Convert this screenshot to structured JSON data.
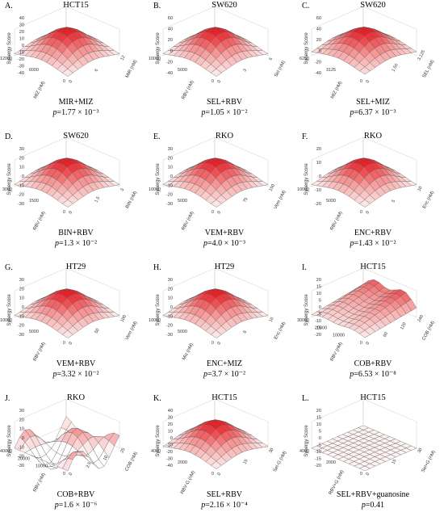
{
  "colors": {
    "high": "#e8141b",
    "mid": "#f59a9a",
    "low": "#ffffff",
    "grid": "#555555"
  },
  "chart_data": [
    {
      "id": "A",
      "type": "surface3d",
      "cell_line": "HCT15",
      "combo": "MIR+MIZ",
      "p_value": "1.77 × 10⁻³",
      "zlabel": "Synergy Score",
      "xlabel": "MIZ (nM)",
      "ylabel": "MIR (nM)",
      "z_ticks": [
        "40",
        "30",
        "20",
        "10",
        "0",
        "-10",
        "-20",
        "-30",
        "-40"
      ],
      "x_ticks": [
        "12000",
        "6000",
        "0"
      ],
      "y_ticks": [
        "0",
        "6",
        "12"
      ],
      "peak": 40,
      "corner_low": 0,
      "surface": "smooth"
    },
    {
      "id": "B",
      "type": "surface3d",
      "cell_line": "SW620",
      "combo": "SEL+RBV",
      "p_value": "1.05 × 10⁻²",
      "zlabel": "Synergy Score",
      "xlabel": "RBV (nM)",
      "ylabel": "Sel (nM)",
      "z_ticks": [
        "60",
        "40",
        "20",
        "0",
        "-20",
        "-40"
      ],
      "x_ticks": [
        "10000",
        "5000",
        "0"
      ],
      "y_ticks": [
        "0",
        "3",
        "6"
      ],
      "peak": 60,
      "corner_low": 0,
      "surface": "smooth"
    },
    {
      "id": "C",
      "type": "surface3d",
      "cell_line": "SW620",
      "combo": "SEL+MIZ",
      "p_value": "6.37 × 10⁻³",
      "zlabel": "Synergy Score",
      "xlabel": "MIZ (nM)",
      "ylabel": "SEL (nM)",
      "z_ticks": [
        "60",
        "40",
        "20",
        "0",
        "-20",
        "-40"
      ],
      "x_ticks": [
        "6250",
        "3125",
        "0"
      ],
      "y_ticks": [
        "0",
        "1.56",
        "3.125"
      ],
      "peak": 60,
      "corner_low": 5,
      "surface": "smooth"
    },
    {
      "id": "D",
      "type": "surface3d",
      "cell_line": "SW620",
      "combo": "BIN+RBV",
      "p_value": "1.3 × 10⁻²",
      "zlabel": "Synergy Score",
      "xlabel": "RBV (nM)",
      "ylabel": "BIN (nM)",
      "z_ticks": [
        "30",
        "20",
        "10",
        "0",
        "-10",
        "-20",
        "-30"
      ],
      "x_ticks": [
        "3000",
        "1500",
        "0"
      ],
      "y_ticks": [
        "0",
        "1.5",
        "3"
      ],
      "peak": 30,
      "corner_low": 0,
      "surface": "smooth"
    },
    {
      "id": "E",
      "type": "surface3d",
      "cell_line": "RKO",
      "combo": "VEM+RBV",
      "p_value": "4.0 × 10⁻³",
      "zlabel": "Synergy Score",
      "xlabel": "RBV (nM)",
      "ylabel": "Vem (nM)",
      "z_ticks": [
        "30",
        "20",
        "10",
        "0",
        "-10",
        "-20",
        "-30"
      ],
      "x_ticks": [
        "10000",
        "5000",
        "0"
      ],
      "y_ticks": [
        "0",
        "75",
        "150"
      ],
      "peak": 30,
      "corner_low": 0,
      "surface": "smooth"
    },
    {
      "id": "F",
      "type": "surface3d",
      "cell_line": "RKO",
      "combo": "ENC+RBV",
      "p_value": "1.43 × 10⁻²",
      "zlabel": "Synergy Score",
      "xlabel": "RBV (nM)",
      "ylabel": "Enc (nM)",
      "z_ticks": [
        "20",
        "10",
        "0",
        "-10",
        "-20"
      ],
      "x_ticks": [
        "10000",
        "5000",
        "0"
      ],
      "y_ticks": [
        "0",
        "5",
        "10"
      ],
      "peak": 20,
      "corner_low": 0,
      "surface": "smooth"
    },
    {
      "id": "G",
      "type": "surface3d",
      "cell_line": "HT29",
      "combo": "VEM+RBV",
      "p_value": "3.32 × 10⁻²",
      "zlabel": "Synergy Score",
      "xlabel": "RBV (nM)",
      "ylabel": "Vem (nM)",
      "z_ticks": [
        "30",
        "20",
        "10",
        "0",
        "-10",
        "-20",
        "-30"
      ],
      "x_ticks": [
        "10000",
        "5000",
        "0"
      ],
      "y_ticks": [
        "0",
        "50",
        "100"
      ],
      "peak": 30,
      "corner_low": 0,
      "surface": "smooth"
    },
    {
      "id": "H",
      "type": "surface3d",
      "cell_line": "HT29",
      "combo": "ENC+MIZ",
      "p_value": "3.7 × 10⁻²",
      "zlabel": "Synergy Score",
      "xlabel": "Miz (nM)",
      "ylabel": "Enc (nM)",
      "z_ticks": [
        "30",
        "20",
        "10",
        "0",
        "-10",
        "-20",
        "-30"
      ],
      "x_ticks": [
        "10000",
        "5000",
        "0"
      ],
      "y_ticks": [
        "0",
        "8",
        "16"
      ],
      "peak": 30,
      "corner_low": 0,
      "surface": "smooth"
    },
    {
      "id": "I",
      "type": "surface3d",
      "cell_line": "HCT15",
      "combo": "COB+RBV",
      "p_value": "6.53 × 10⁻⁸",
      "zlabel": "Synergy Score",
      "xlabel": "RBV (nM)",
      "ylabel": "COB (nM)",
      "z_ticks": [
        "20",
        "15",
        "10",
        "5",
        "0",
        "-5",
        "-10",
        "-15",
        "-20"
      ],
      "x_ticks": [
        "30000",
        "20000",
        "10000",
        "0"
      ],
      "y_ticks": [
        "0",
        "60",
        "120",
        "240"
      ],
      "peak": 20,
      "corner_low": 0,
      "surface": "ridged"
    },
    {
      "id": "J",
      "type": "surface3d",
      "cell_line": "RKO",
      "combo": "COB+RBV",
      "p_value": "1.6 × 10⁻⁶",
      "zlabel": "Synergy Score",
      "xlabel": "RBV (nM)",
      "ylabel": "COB (nM)",
      "z_ticks": [
        "30",
        "20",
        "10",
        "0",
        "-10",
        "-20",
        "-30"
      ],
      "x_ticks": [
        "40000",
        "20000",
        "10000",
        "0"
      ],
      "y_ticks": [
        "0",
        "2.5",
        "10",
        "25"
      ],
      "peak": 30,
      "corner_low": 0,
      "surface": "wavy"
    },
    {
      "id": "K",
      "type": "surface3d",
      "cell_line": "HCT15",
      "combo": "SEL+RBV",
      "p_value": "2.16 × 10⁻⁴",
      "zlabel": "Synergy Score",
      "xlabel": "RBV-G (nM)",
      "ylabel": "Sel-G (nM)",
      "z_ticks": [
        "40",
        "30",
        "20",
        "10",
        "0",
        "-10",
        "-20",
        "-30",
        "-40"
      ],
      "x_ticks": [
        "4000",
        "2000",
        "0"
      ],
      "y_ticks": [
        "0",
        "15",
        "30"
      ],
      "peak": 40,
      "corner_low": 0,
      "surface": "smooth"
    },
    {
      "id": "L",
      "type": "surface3d",
      "cell_line": "HCT15",
      "combo": "SEL+RBV+guanosine",
      "p_value": "0.41",
      "zlabel": "Synergy Score",
      "xlabel": "RBV+G (nM)",
      "ylabel": "Sel+G (nM)",
      "z_ticks": [
        "20",
        "15",
        "10",
        "5",
        "0",
        "-5",
        "-10",
        "-15",
        "-20"
      ],
      "x_ticks": [
        "4000",
        "2000",
        "0"
      ],
      "y_ticks": [
        "0",
        "15",
        "30"
      ],
      "peak": 2,
      "corner_low": 0,
      "surface": "flat"
    }
  ]
}
